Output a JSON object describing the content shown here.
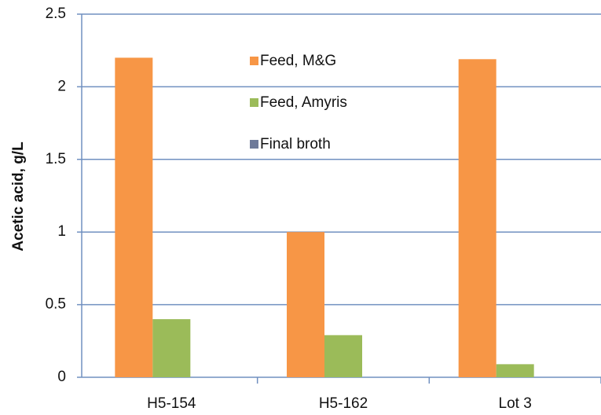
{
  "chart_data": {
    "type": "bar",
    "y_axis_label": "Acetic acid, g/L",
    "categories": [
      "H5-154",
      "H5-162",
      "Lot 3"
    ],
    "series": [
      {
        "name": "Feed, M&G",
        "color": "#f79646",
        "values": [
          2.2,
          1.0,
          2.19
        ]
      },
      {
        "name": "Feed, Amyris",
        "color": "#9bbb59",
        "values": [
          0.4,
          0.29,
          0.09
        ]
      },
      {
        "name": "Final broth",
        "color": "#6e7a99",
        "values": [
          0,
          0,
          0
        ]
      }
    ],
    "ylim": [
      0,
      2.5
    ],
    "yticks": [
      0,
      0.5,
      1,
      1.5,
      2,
      2.5
    ],
    "grid": true,
    "legend": "top"
  }
}
